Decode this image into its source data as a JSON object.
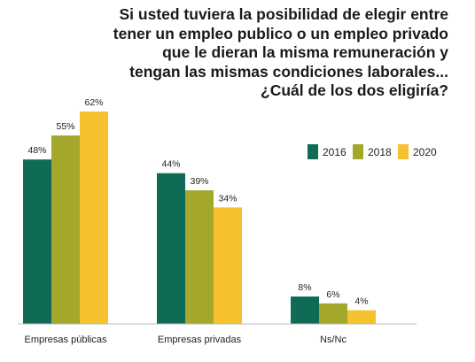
{
  "chart_data": {
    "type": "bar",
    "title_lines": [
      "Si usted tuviera la posibilidad de elegir entre",
      "tener un empleo publico o un empleo privado",
      "que le dieran la misma remuneración y",
      "tengan las mismas condiciones laborales...",
      "¿Cuál de los dos eligiría?"
    ],
    "categories": [
      "Empresas públicas",
      "Empresas privadas",
      "Ns/Nc"
    ],
    "series": [
      {
        "name": "2016",
        "color": "#0f6b56",
        "values": [
          48,
          44,
          8
        ]
      },
      {
        "name": "2018",
        "color": "#a3a82a",
        "values": [
          55,
          39,
          6
        ]
      },
      {
        "name": "2020",
        "color": "#f6c12e",
        "values": [
          62,
          34,
          4
        ]
      }
    ],
    "value_suffix": "%",
    "ylim": [
      0,
      62
    ],
    "grid": false,
    "legend_position": "top-right"
  }
}
